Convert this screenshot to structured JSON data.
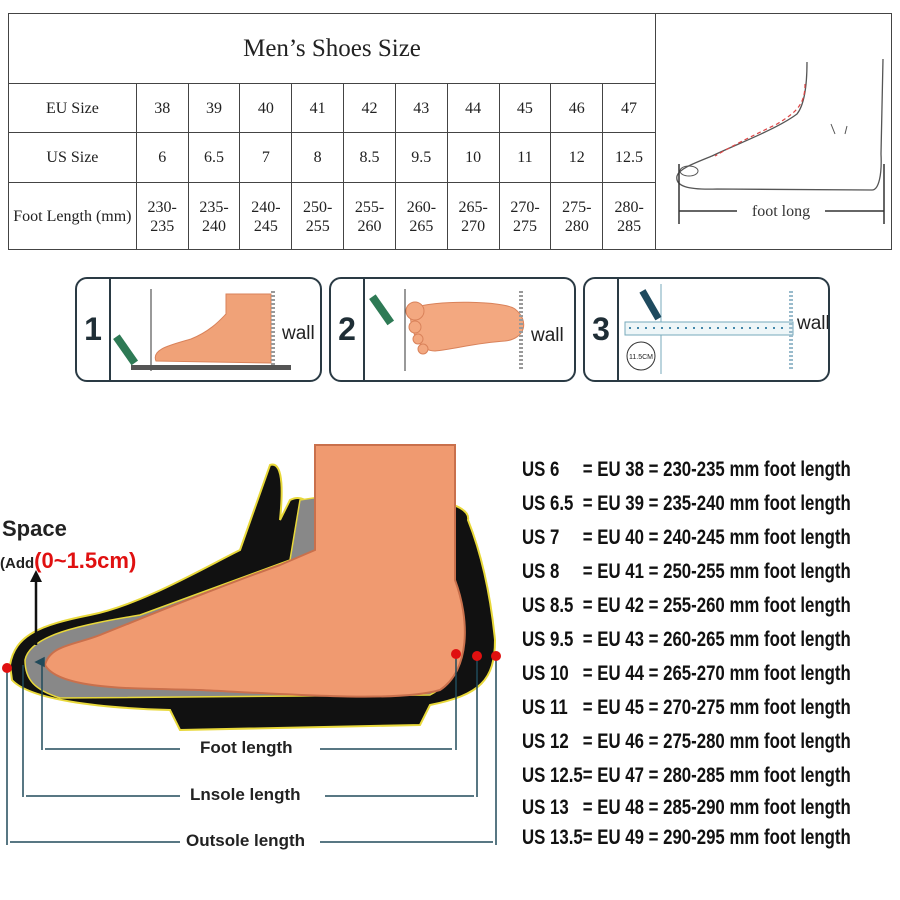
{
  "table": {
    "title": "Men’s Shoes Size",
    "rows": [
      {
        "label": "EU Size",
        "values": [
          "38",
          "39",
          "40",
          "41",
          "42",
          "43",
          "44",
          "45",
          "46",
          "47"
        ]
      },
      {
        "label": "US Size",
        "values": [
          "6",
          "6.5",
          "7",
          "8",
          "8.5",
          "9.5",
          "10",
          "11",
          "12",
          "12.5"
        ]
      },
      {
        "label": "Foot Length (mm)",
        "values": [
          "230-235",
          "235-240",
          "240-245",
          "250-255",
          "255-260",
          "260-265",
          "265-270",
          "270-275",
          "275-280",
          "280-285"
        ]
      }
    ],
    "foot_label": "foot long"
  },
  "steps": [
    {
      "number": "1",
      "wall": "wall"
    },
    {
      "number": "2",
      "wall": "wall"
    },
    {
      "number": "3",
      "wall": "wall",
      "ruler_label": "11.5CM"
    }
  ],
  "diagram": {
    "space_label": "Space",
    "add_label": "(Add",
    "add_value": "(0~1.5cm)",
    "foot_length": "Foot length",
    "insole_length": "Lnsole length",
    "outsole_length": "Outsole length",
    "accent_color": "#e01010"
  },
  "size_list": [
    {
      "us": "US 6",
      "rest": "= EU 38 = 230-235 mm foot length"
    },
    {
      "us": "US 6.5",
      "rest": "= EU 39 = 235-240 mm foot length"
    },
    {
      "us": "US 7",
      "rest": "= EU 40 = 240-245 mm foot length"
    },
    {
      "us": "US 8",
      "rest": "= EU 41 = 250-255 mm foot length"
    },
    {
      "us": "US 8.5",
      "rest": "= EU 42 = 255-260 mm foot length"
    },
    {
      "us": "US 9.5",
      "rest": "= EU 43 = 260-265 mm foot length"
    },
    {
      "us": "US 10",
      "rest": "= EU 44 = 265-270 mm foot length"
    },
    {
      "us": "US 11",
      "rest": "= EU 45 = 270-275 mm foot length"
    },
    {
      "us": "US 12",
      "rest": "= EU 46 = 275-280 mm foot length"
    },
    {
      "us": "US 12.5",
      "rest": "= EU 47 = 280-285 mm foot length"
    },
    {
      "us": "US 13",
      "rest": "= EU 48 = 285-290 mm foot length"
    },
    {
      "us": "US 13.5",
      "rest": "= EU 49 = 290-295 mm foot length"
    }
  ]
}
